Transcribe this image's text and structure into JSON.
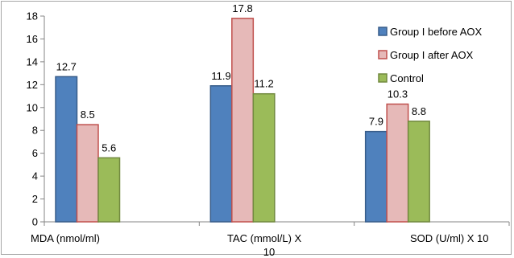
{
  "chart_data": {
    "type": "bar",
    "categories": [
      "MDA (nmol/ml)",
      "TAC (mmol/L)  X 10",
      "SOD (U/ml)  X 10"
    ],
    "series": [
      {
        "name": "Group I before AOX",
        "values": [
          12.7,
          11.9,
          7.9
        ],
        "color": "#4f81bd",
        "border": "#385d8a"
      },
      {
        "name": "Group I after AOX",
        "values": [
          8.5,
          17.8,
          10.3
        ],
        "color": "#e6b9b8",
        "border": "#c0504d"
      },
      {
        "name": "Control",
        "values": [
          5.6,
          11.2,
          8.8
        ],
        "color": "#9bbb59",
        "border": "#71893f"
      }
    ],
    "data_labels": [
      [
        "12.7",
        "11.9",
        "7.9"
      ],
      [
        "8.5",
        "17.8",
        "10.3"
      ],
      [
        "5.6",
        "11.2",
        "8.8"
      ]
    ],
    "yticks": [
      "0",
      "2",
      "4",
      "6",
      "8",
      "10",
      "12",
      "14",
      "16",
      "18"
    ],
    "ylim": [
      0,
      18
    ],
    "title": "",
    "xlabel": "",
    "ylabel": "",
    "grid": false,
    "legend_position": "top-right"
  }
}
